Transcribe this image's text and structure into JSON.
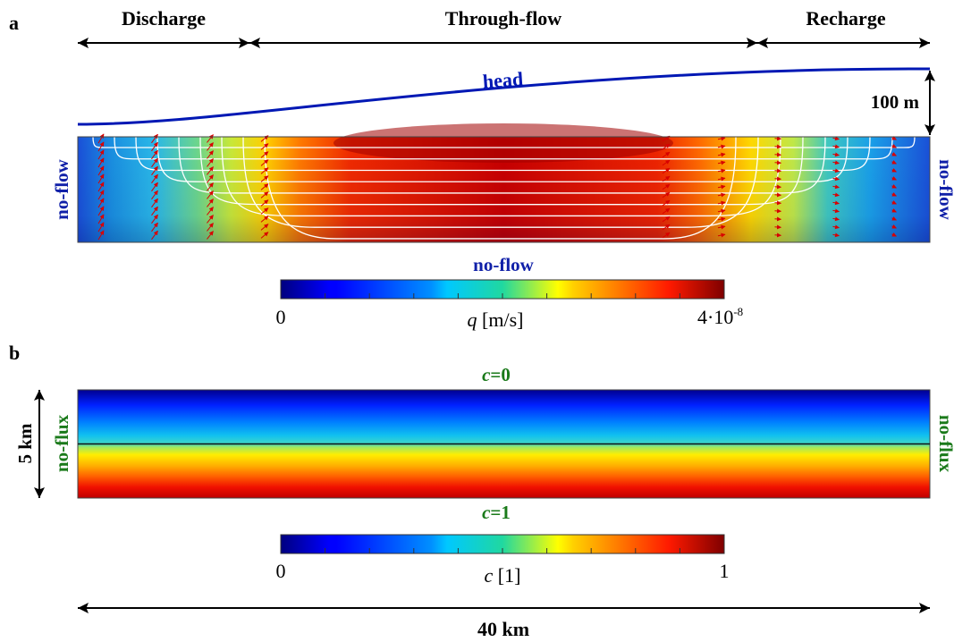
{
  "colors": {
    "arrow": "#000000",
    "head_curve": "#0018b4",
    "flow_label": "#1020a8",
    "flux_label": "#1a7a1a",
    "streamline": "#ffffff",
    "velocity_arrow": "#d80000"
  },
  "colormap": "jet",
  "panel_a": {
    "letter": "a",
    "zones": [
      "Discharge",
      "Through-flow",
      "Recharge"
    ],
    "head_label": "head",
    "head_rise": "100 m",
    "bc_left": "no-flow",
    "bc_right": "no-flow",
    "bc_bottom": "no-flow",
    "colorbar": {
      "min_label": "0",
      "max_label": "4·10",
      "max_exponent": "-8",
      "quantity": "q",
      "unit": "[m/s]"
    }
  },
  "panel_b": {
    "letter": "b",
    "bc_top_var": "c",
    "bc_top_val": "=0",
    "bc_bottom_var": "c",
    "bc_bottom_val": "=1",
    "bc_left": "no-flux",
    "bc_right": "no-flux",
    "depth": "5 km",
    "width": "40 km",
    "colorbar": {
      "min_label": "0",
      "max_label": "1",
      "quantity": "c",
      "unit": "[1]"
    }
  }
}
